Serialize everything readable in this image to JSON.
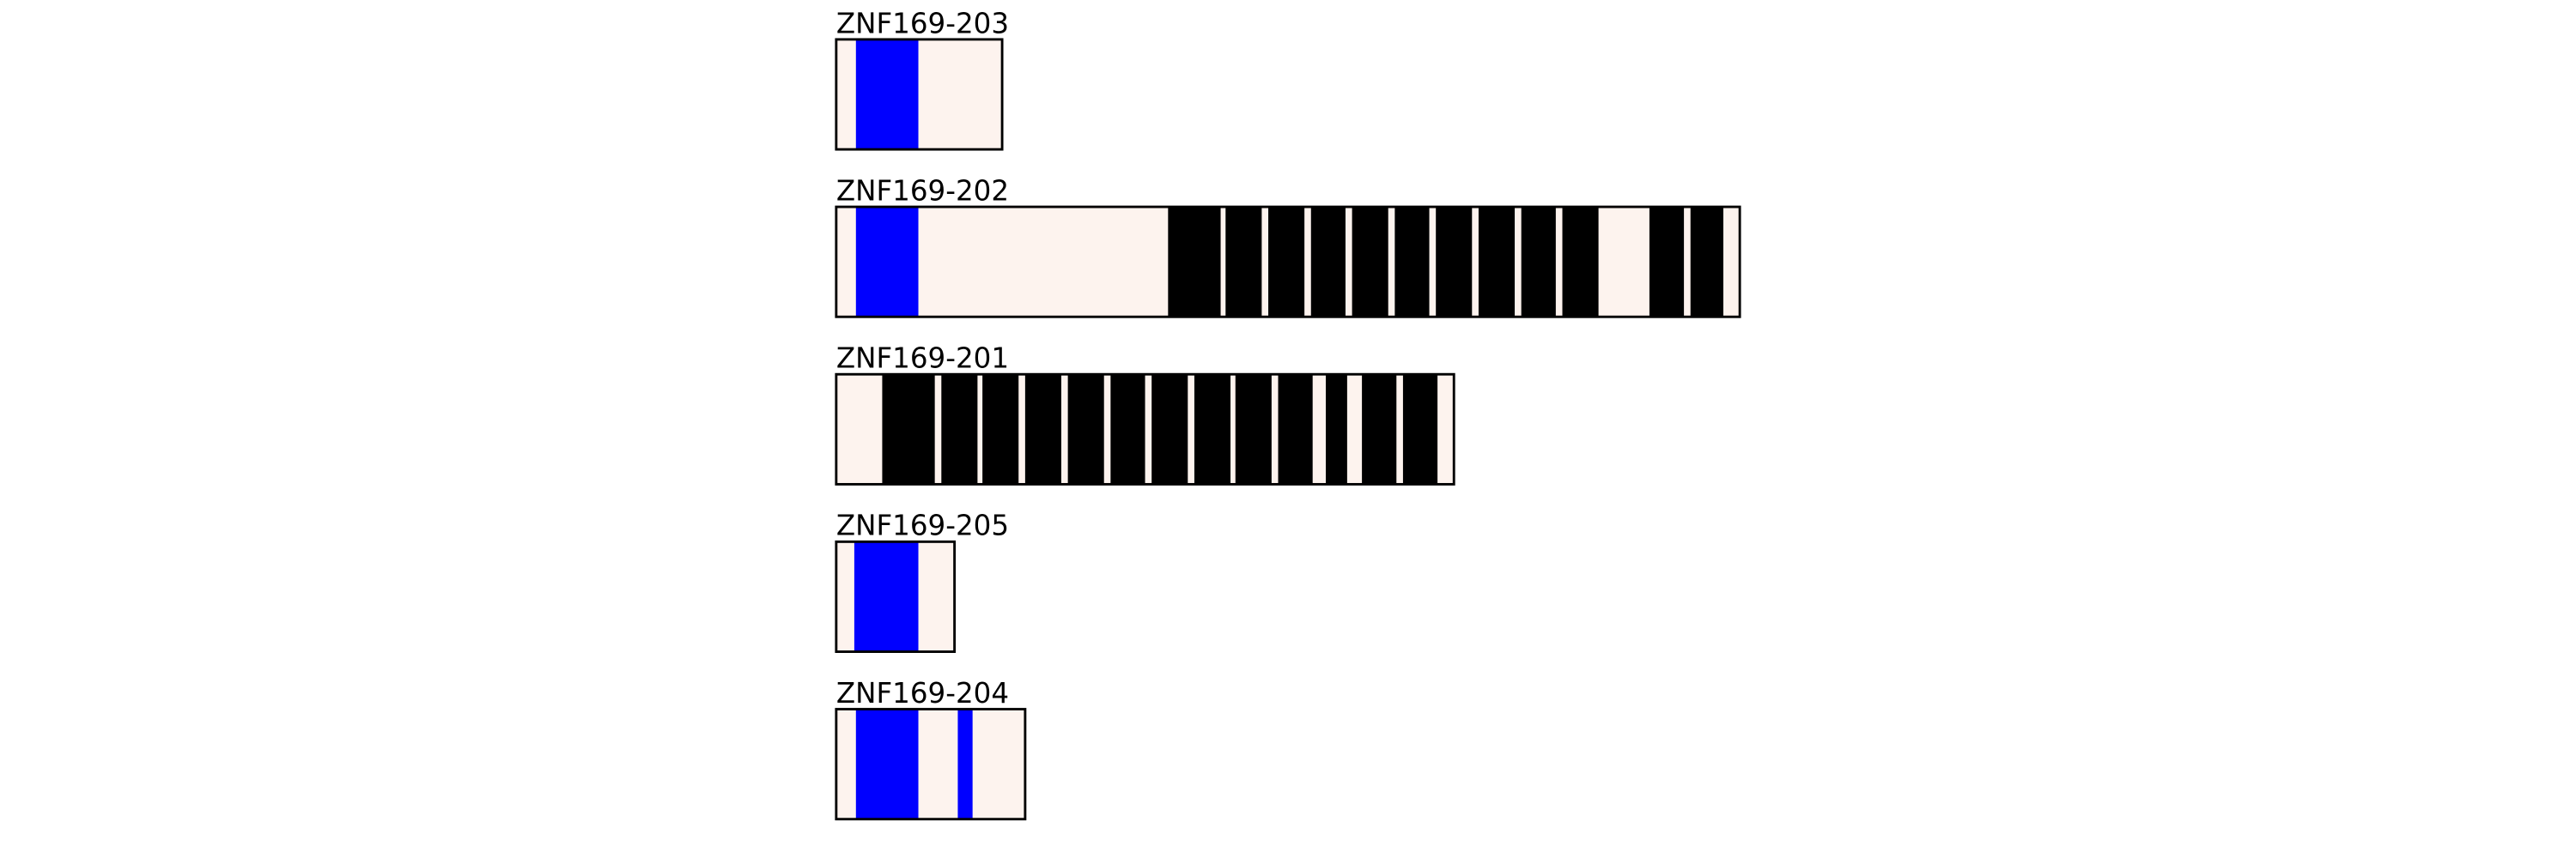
{
  "transcripts": [
    {
      "name": "ZNF169-203",
      "length": 101,
      "domains": [
        {
          "start": 12,
          "end": 50,
          "color": "#0000ff"
        }
      ]
    },
    {
      "name": "ZNF169-202",
      "length": 550,
      "domains": [
        {
          "start": 12,
          "end": 50,
          "color": "#0000ff"
        },
        {
          "start": 202,
          "end": 234,
          "color": "#000000"
        },
        {
          "start": 237,
          "end": 259,
          "color": "#000000"
        },
        {
          "start": 263,
          "end": 285,
          "color": "#000000"
        },
        {
          "start": 289,
          "end": 310,
          "color": "#000000"
        },
        {
          "start": 314,
          "end": 336,
          "color": "#000000"
        },
        {
          "start": 340,
          "end": 361,
          "color": "#000000"
        },
        {
          "start": 365,
          "end": 387,
          "color": "#000000"
        },
        {
          "start": 391,
          "end": 413,
          "color": "#000000"
        },
        {
          "start": 417,
          "end": 438,
          "color": "#000000"
        },
        {
          "start": 442,
          "end": 464,
          "color": "#000000"
        },
        {
          "start": 495,
          "end": 516,
          "color": "#000000"
        },
        {
          "start": 520,
          "end": 540,
          "color": "#000000"
        }
      ]
    },
    {
      "name": "ZNF169-201",
      "length": 376,
      "domains": [
        {
          "start": 28,
          "end": 60,
          "color": "#000000"
        },
        {
          "start": 64,
          "end": 86,
          "color": "#000000"
        },
        {
          "start": 89,
          "end": 111,
          "color": "#000000"
        },
        {
          "start": 115,
          "end": 137,
          "color": "#000000"
        },
        {
          "start": 141,
          "end": 163,
          "color": "#000000"
        },
        {
          "start": 167,
          "end": 188,
          "color": "#000000"
        },
        {
          "start": 192,
          "end": 214,
          "color": "#000000"
        },
        {
          "start": 218,
          "end": 240,
          "color": "#000000"
        },
        {
          "start": 243,
          "end": 265,
          "color": "#000000"
        },
        {
          "start": 269,
          "end": 290,
          "color": "#000000"
        },
        {
          "start": 298,
          "end": 311,
          "color": "#000000"
        },
        {
          "start": 320,
          "end": 341,
          "color": "#000000"
        },
        {
          "start": 345,
          "end": 366,
          "color": "#000000"
        }
      ]
    },
    {
      "name": "ZNF169-205",
      "length": 72,
      "domains": [
        {
          "start": 11,
          "end": 50,
          "color": "#0000ff"
        }
      ]
    },
    {
      "name": "ZNF169-204",
      "length": 115,
      "domains": [
        {
          "start": 12,
          "end": 50,
          "color": "#0000ff"
        },
        {
          "start": 74,
          "end": 83,
          "color": "#0000ff"
        }
      ]
    }
  ],
  "fill": "#fdf3ee"
}
